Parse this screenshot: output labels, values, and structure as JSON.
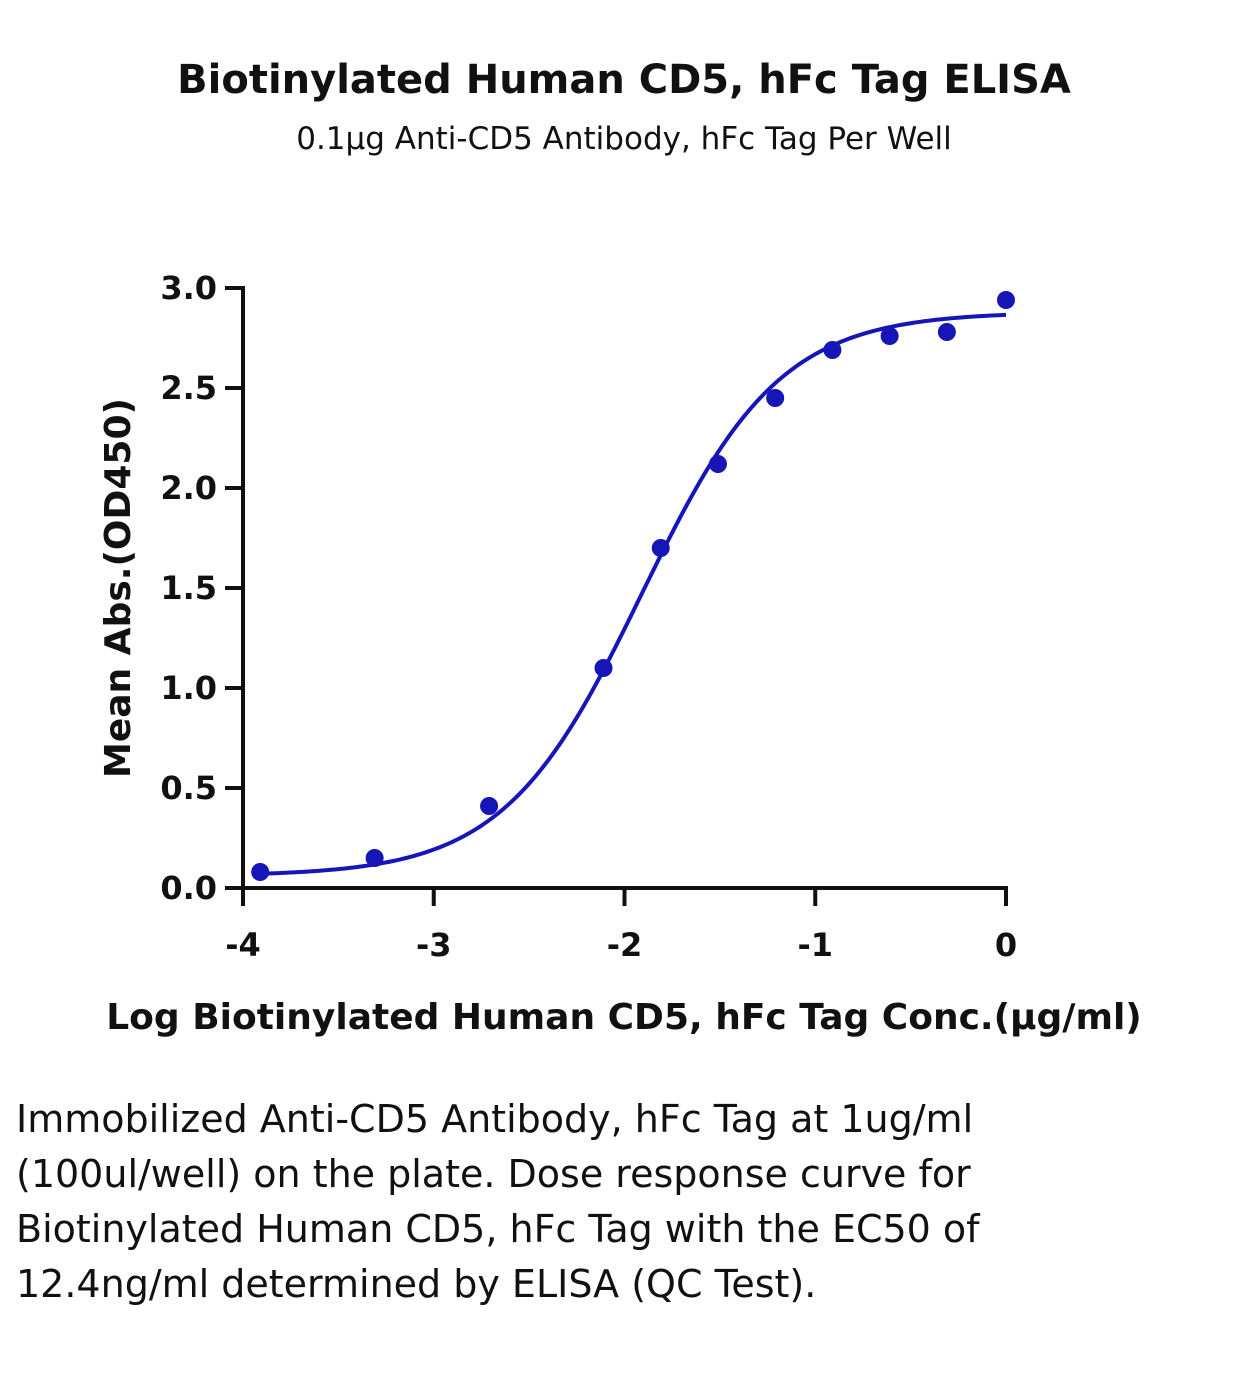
{
  "chart_data": {
    "type": "scatter",
    "title": "Biotinylated Human CD5, hFc Tag ELISA",
    "subtitle": "0.1µg Anti-CD5 Antibody, hFc Tag Per Well",
    "xlabel": "Log Biotinylated Human CD5, hFc Tag Conc.(µg/ml)",
    "ylabel": "Mean Abs.(OD450)",
    "xlim": [
      -4,
      0
    ],
    "ylim": [
      0,
      3.0
    ],
    "xticks": [
      -4,
      -3,
      -2,
      -1,
      0
    ],
    "xtick_labels": [
      "-4",
      "-3",
      "-2",
      "-1",
      "0"
    ],
    "yticks": [
      0,
      0.5,
      1.0,
      1.5,
      2.0,
      2.5,
      3.0
    ],
    "ytick_labels": [
      "0.0",
      "0.5",
      "1.0",
      "1.5",
      "2.0",
      "2.5",
      "3.0"
    ],
    "grid": false,
    "color": "#1515b8",
    "series": [
      {
        "points": [
          {
            "x": -3.91,
            "y": 0.08
          },
          {
            "x": -3.31,
            "y": 0.15
          },
          {
            "x": -2.71,
            "y": 0.41
          },
          {
            "x": -2.11,
            "y": 1.1
          },
          {
            "x": -1.81,
            "y": 1.7
          },
          {
            "x": -1.51,
            "y": 2.12
          },
          {
            "x": -1.21,
            "y": 2.45
          },
          {
            "x": -0.91,
            "y": 2.69
          },
          {
            "x": -0.61,
            "y": 2.76
          },
          {
            "x": -0.31,
            "y": 2.78
          },
          {
            "x": 0.0,
            "y": 2.94
          }
        ],
        "fit": {
          "model": "4PL",
          "bottom": 0.06,
          "top": 2.88,
          "log_ec50": -1.91,
          "hill_slope": 1.2,
          "x_range": [
            -3.91,
            0.0
          ]
        }
      }
    ]
  },
  "caption": "Immobilized Anti-CD5 Antibody, hFc Tag at 1ug/ml (100ul/well) on the plate. Dose response curve for Biotinylated Human CD5, hFc Tag with the EC50 of 12.4ng/ml determined by ELISA (QC Test)."
}
